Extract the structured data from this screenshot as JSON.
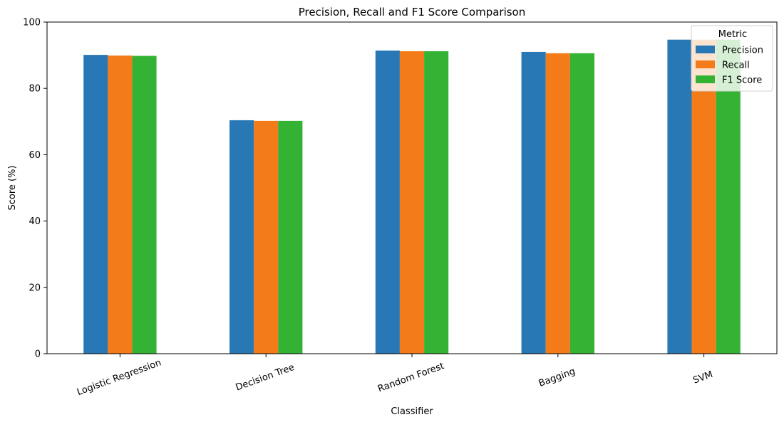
{
  "chart_data": {
    "type": "bar",
    "title": "Precision, Recall and F1 Score Comparison",
    "xlabel": "Classifier",
    "ylabel": "Score (%)",
    "ylim": [
      0,
      100
    ],
    "yticks": [
      "0",
      "20",
      "40",
      "60",
      "80",
      "100"
    ],
    "categories": [
      "Logistic Regression",
      "Decision Tree",
      "Random Forest",
      "Bagging",
      "SVM"
    ],
    "series": [
      {
        "name": "Precision",
        "color": "#2878b5",
        "values": [
          90.1,
          70.4,
          91.4,
          91.0,
          94.7
        ]
      },
      {
        "name": "Recall",
        "color": "#f47b1a",
        "values": [
          89.9,
          70.2,
          91.2,
          90.6,
          94.7
        ]
      },
      {
        "name": "F1 Score",
        "color": "#34b233",
        "values": [
          89.8,
          70.2,
          91.2,
          90.6,
          94.7
        ]
      }
    ],
    "legend": {
      "title": "Metric",
      "position": "top-right"
    },
    "grid": false
  }
}
